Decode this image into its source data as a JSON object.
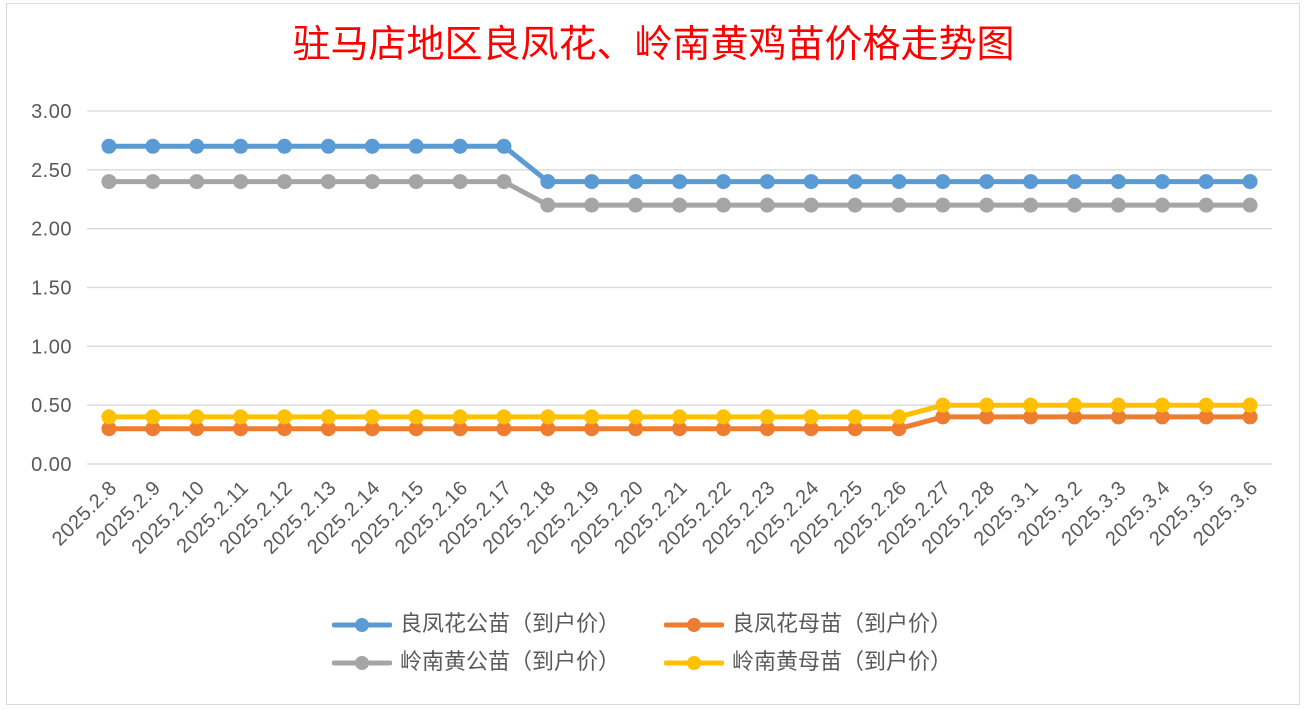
{
  "chart_data": {
    "type": "line",
    "title": "驻马店地区良凤花、岭南黄鸡苗价格走势图",
    "title_color": "#FF0000",
    "categories": [
      "2025.2.8",
      "2025.2.9",
      "2025.2.10",
      "2025.2.11",
      "2025.2.12",
      "2025.2.13",
      "2025.2.14",
      "2025.2.15",
      "2025.2.16",
      "2025.2.17",
      "2025.2.18",
      "2025.2.19",
      "2025.2.20",
      "2025.2.21",
      "2025.2.22",
      "2025.2.23",
      "2025.2.24",
      "2025.2.25",
      "2025.2.26",
      "2025.2.27",
      "2025.2.28",
      "2025.3.1",
      "2025.3.2",
      "2025.3.3",
      "2025.3.4",
      "2025.3.5",
      "2025.3.6"
    ],
    "series": [
      {
        "name": "良凤花公苗（到户价）",
        "color": "#5B9BD5",
        "values": [
          2.7,
          2.7,
          2.7,
          2.7,
          2.7,
          2.7,
          2.7,
          2.7,
          2.7,
          2.7,
          2.4,
          2.4,
          2.4,
          2.4,
          2.4,
          2.4,
          2.4,
          2.4,
          2.4,
          2.4,
          2.4,
          2.4,
          2.4,
          2.4,
          2.4,
          2.4,
          2.4
        ]
      },
      {
        "name": "良凤花母苗（到户价）",
        "color": "#ED7D31",
        "values": [
          0.3,
          0.3,
          0.3,
          0.3,
          0.3,
          0.3,
          0.3,
          0.3,
          0.3,
          0.3,
          0.3,
          0.3,
          0.3,
          0.3,
          0.3,
          0.3,
          0.3,
          0.3,
          0.3,
          0.4,
          0.4,
          0.4,
          0.4,
          0.4,
          0.4,
          0.4,
          0.4
        ]
      },
      {
        "name": "岭南黄公苗（到户价）",
        "color": "#A5A5A5",
        "values": [
          2.4,
          2.4,
          2.4,
          2.4,
          2.4,
          2.4,
          2.4,
          2.4,
          2.4,
          2.4,
          2.2,
          2.2,
          2.2,
          2.2,
          2.2,
          2.2,
          2.2,
          2.2,
          2.2,
          2.2,
          2.2,
          2.2,
          2.2,
          2.2,
          2.2,
          2.2,
          2.2
        ]
      },
      {
        "name": "岭南黄母苗（到户价）",
        "color": "#FFC000",
        "values": [
          0.4,
          0.4,
          0.4,
          0.4,
          0.4,
          0.4,
          0.4,
          0.4,
          0.4,
          0.4,
          0.4,
          0.4,
          0.4,
          0.4,
          0.4,
          0.4,
          0.4,
          0.4,
          0.4,
          0.5,
          0.5,
          0.5,
          0.5,
          0.5,
          0.5,
          0.5,
          0.5
        ]
      }
    ],
    "ylim": [
      0,
      3
    ],
    "ytick_labels": [
      "0.00",
      "0.50",
      "1.00",
      "1.50",
      "2.00",
      "2.50",
      "3.00"
    ],
    "grid": true,
    "legend": "bottom"
  }
}
